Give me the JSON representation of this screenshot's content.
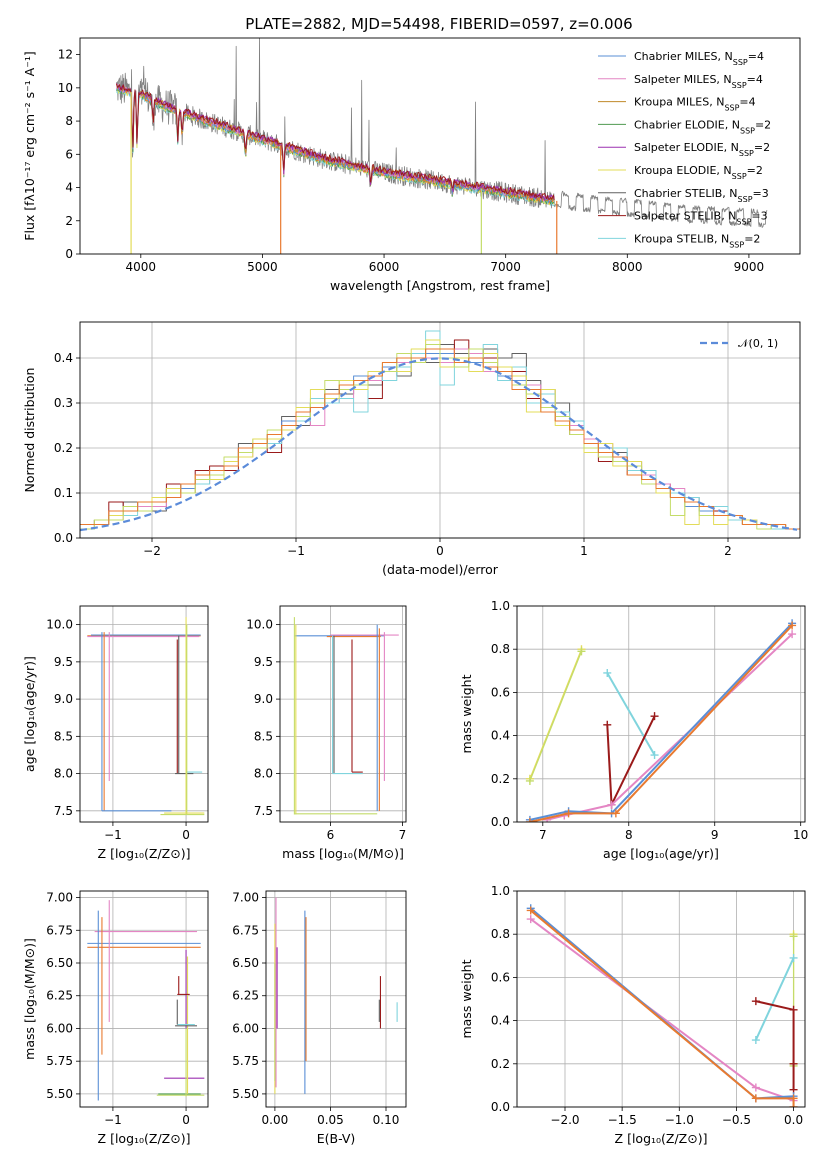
{
  "title": "PLATE=2882, MJD=54498, FIBERID=0597, z=0.006",
  "colors": {
    "c_m": "#5a8fd6",
    "s_m": "#e486c4",
    "k_m": "#c08a2a",
    "c_e": "#4f9a50",
    "s_e": "#9b30b0",
    "k_e": "#e3dc5a",
    "c_s": "#606060",
    "s_s": "#9a1a1a",
    "k_s": "#80d4dd",
    "data": "#808080",
    "orange": "#e87a30",
    "lime": "#c4dc6a"
  },
  "chart_data": [
    {
      "id": "spectrum",
      "type": "line",
      "title": "PLATE=2882, MJD=54498, FIBERID=0597, z=0.006",
      "xlabel": "wavelength [Angstrom, rest frame]",
      "ylabel": "Flux [fλ10⁻¹⁷ erg cm⁻² s⁻¹ A⁻¹]",
      "xlim": [
        3500,
        9420
      ],
      "ylim": [
        0,
        13
      ],
      "xticks": [
        4000,
        5000,
        6000,
        7000,
        8000,
        9000
      ],
      "yticks": [
        0,
        2,
        4,
        6,
        8,
        10,
        12
      ],
      "grid": false,
      "legend_position": "top-right",
      "continuum_anchors": {
        "x": [
          3800,
          3900,
          4000,
          4200,
          4500,
          5000,
          5500,
          6000,
          6500,
          7000,
          7500,
          8000,
          8500,
          9000,
          9150
        ],
        "y": [
          10.0,
          9.8,
          9.6,
          8.9,
          8.1,
          6.9,
          5.7,
          4.9,
          4.3,
          3.7,
          3.1,
          2.7,
          2.3,
          2.1,
          2.0
        ]
      },
      "data_range": [
        3800,
        9150
      ],
      "model_range": [
        3800,
        7400
      ],
      "legend": [
        {
          "label": "Chabrier MILES, N",
          "sub": "SSP",
          "suffix": "=4",
          "color_key": "c_m"
        },
        {
          "label": "Salpeter MILES, N",
          "sub": "SSP",
          "suffix": "=4",
          "color_key": "s_m"
        },
        {
          "label": "Kroupa MILES, N",
          "sub": "SSP",
          "suffix": "=4",
          "color_key": "k_m"
        },
        {
          "label": "Chabrier ELODIE, N",
          "sub": "SSP",
          "suffix": "=2",
          "color_key": "c_e"
        },
        {
          "label": "Salpeter ELODIE, N",
          "sub": "SSP",
          "suffix": "=2",
          "color_key": "s_e"
        },
        {
          "label": "Kroupa ELODIE, N",
          "sub": "SSP",
          "suffix": "=2",
          "color_key": "k_e"
        },
        {
          "label": "Chabrier STELIB, N",
          "sub": "SSP",
          "suffix": "=3",
          "color_key": "c_s"
        },
        {
          "label": "Salpeter STELIB, N",
          "sub": "SSP",
          "suffix": "=3",
          "color_key": "s_s"
        },
        {
          "label": "Kroupa STELIB, N",
          "sub": "SSP",
          "suffix": "=2",
          "color_key": "k_s"
        }
      ]
    },
    {
      "id": "residuals",
      "type": "line",
      "xlabel": "(data-model)/error",
      "ylabel": "Normed distribution",
      "xlim": [
        -2.5,
        2.5
      ],
      "ylim": [
        0,
        0.48
      ],
      "xticks": [
        -2,
        -1,
        0,
        1,
        2
      ],
      "yticks": [
        0.0,
        0.1,
        0.2,
        0.3,
        0.4
      ],
      "grid": true,
      "legend_position": "top-right",
      "legend_label": "𝒩(0, 1)",
      "bin_width": 0.1,
      "bin_start": -2.5,
      "series": [
        {
          "color_key": "c_s",
          "values": [
            0.03,
            0.04,
            0.05,
            0.08,
            0.07,
            0.06,
            0.11,
            0.1,
            0.12,
            0.14,
            0.17,
            0.21,
            0.2,
            0.22,
            0.27,
            0.25,
            0.3,
            0.33,
            0.32,
            0.35,
            0.34,
            0.38,
            0.36,
            0.4,
            0.39,
            0.43,
            0.41,
            0.39,
            0.42,
            0.4,
            0.41,
            0.35,
            0.33,
            0.3,
            0.24,
            0.22,
            0.2,
            0.19,
            0.17,
            0.15,
            0.12,
            0.1,
            0.09,
            0.07,
            0.06,
            0.05,
            0.04,
            0.03,
            0.03,
            0.02
          ]
        },
        {
          "color_key": "s_s",
          "values": [
            0.02,
            0.04,
            0.08,
            0.07,
            0.08,
            0.09,
            0.12,
            0.11,
            0.15,
            0.16,
            0.15,
            0.2,
            0.21,
            0.19,
            0.26,
            0.27,
            0.29,
            0.32,
            0.33,
            0.34,
            0.31,
            0.37,
            0.39,
            0.4,
            0.42,
            0.41,
            0.44,
            0.42,
            0.4,
            0.36,
            0.37,
            0.31,
            0.3,
            0.26,
            0.23,
            0.21,
            0.17,
            0.18,
            0.14,
            0.13,
            0.12,
            0.09,
            0.08,
            0.06,
            0.06,
            0.04,
            0.03,
            0.03,
            0.03,
            0.02
          ]
        },
        {
          "color_key": "c_m",
          "values": [
            0.03,
            0.03,
            0.05,
            0.06,
            0.07,
            0.08,
            0.1,
            0.11,
            0.13,
            0.15,
            0.17,
            0.19,
            0.21,
            0.23,
            0.26,
            0.28,
            0.3,
            0.32,
            0.34,
            0.36,
            0.37,
            0.38,
            0.4,
            0.4,
            0.41,
            0.41,
            0.4,
            0.39,
            0.38,
            0.36,
            0.35,
            0.32,
            0.3,
            0.27,
            0.25,
            0.22,
            0.2,
            0.17,
            0.15,
            0.13,
            0.11,
            0.09,
            0.07,
            0.06,
            0.05,
            0.04,
            0.03,
            0.03,
            0.02,
            0.02
          ]
        },
        {
          "color_key": "s_m",
          "values": [
            0.02,
            0.03,
            0.04,
            0.06,
            0.07,
            0.07,
            0.09,
            0.1,
            0.12,
            0.14,
            0.16,
            0.18,
            0.2,
            0.22,
            0.24,
            0.27,
            0.25,
            0.3,
            0.31,
            0.33,
            0.35,
            0.37,
            0.39,
            0.41,
            0.4,
            0.39,
            0.42,
            0.41,
            0.37,
            0.38,
            0.33,
            0.34,
            0.29,
            0.28,
            0.25,
            0.22,
            0.21,
            0.18,
            0.16,
            0.14,
            0.12,
            0.11,
            0.08,
            0.07,
            0.05,
            0.05,
            0.04,
            0.03,
            0.03,
            0.02
          ]
        },
        {
          "color_key": "k_s",
          "values": [
            0.02,
            0.03,
            0.05,
            0.05,
            0.08,
            0.08,
            0.1,
            0.12,
            0.12,
            0.15,
            0.16,
            0.19,
            0.22,
            0.21,
            0.25,
            0.26,
            0.31,
            0.3,
            0.31,
            0.28,
            0.36,
            0.35,
            0.38,
            0.41,
            0.46,
            0.34,
            0.39,
            0.4,
            0.43,
            0.35,
            0.38,
            0.3,
            0.32,
            0.28,
            0.26,
            0.2,
            0.19,
            0.2,
            0.15,
            0.15,
            0.11,
            0.1,
            0.09,
            0.07,
            0.07,
            0.04,
            0.04,
            0.03,
            0.02,
            0.02
          ]
        },
        {
          "color_key": "k_e",
          "values": [
            0.03,
            0.03,
            0.05,
            0.07,
            0.06,
            0.09,
            0.11,
            0.1,
            0.14,
            0.13,
            0.17,
            0.18,
            0.22,
            0.22,
            0.24,
            0.29,
            0.33,
            0.31,
            0.35,
            0.33,
            0.37,
            0.39,
            0.37,
            0.42,
            0.44,
            0.38,
            0.4,
            0.37,
            0.41,
            0.38,
            0.36,
            0.28,
            0.33,
            0.25,
            0.24,
            0.19,
            0.21,
            0.16,
            0.17,
            0.13,
            0.1,
            0.09,
            0.03,
            0.07,
            0.03,
            0.05,
            0.04,
            0.03,
            0.03,
            0.02
          ]
        },
        {
          "color_key": "lime",
          "values": [
            0.02,
            0.04,
            0.04,
            0.07,
            0.06,
            0.08,
            0.1,
            0.1,
            0.13,
            0.14,
            0.18,
            0.19,
            0.2,
            0.24,
            0.25,
            0.27,
            0.3,
            0.35,
            0.33,
            0.34,
            0.36,
            0.37,
            0.41,
            0.39,
            0.43,
            0.4,
            0.38,
            0.42,
            0.39,
            0.37,
            0.34,
            0.32,
            0.29,
            0.27,
            0.23,
            0.2,
            0.18,
            0.17,
            0.16,
            0.12,
            0.11,
            0.05,
            0.08,
            0.05,
            0.05,
            0.05,
            0.03,
            0.02,
            0.03,
            0.02
          ]
        },
        {
          "color_key": "orange",
          "values": [
            0.03,
            0.03,
            0.06,
            0.06,
            0.08,
            0.08,
            0.09,
            0.12,
            0.14,
            0.15,
            0.16,
            0.2,
            0.21,
            0.23,
            0.25,
            0.28,
            0.29,
            0.32,
            0.34,
            0.35,
            0.36,
            0.39,
            0.4,
            0.4,
            0.42,
            0.42,
            0.39,
            0.4,
            0.38,
            0.37,
            0.33,
            0.33,
            0.28,
            0.26,
            0.24,
            0.21,
            0.19,
            0.18,
            0.14,
            0.13,
            0.11,
            0.09,
            0.08,
            0.07,
            0.05,
            0.05,
            0.03,
            0.03,
            0.03,
            0.02
          ]
        }
      ]
    },
    {
      "id": "age_vs_z",
      "type": "line",
      "xlabel": "Z [log₁₀(Z/Z⊙)]",
      "ylabel": "age  [log₁₀(age/yr)]",
      "xlim": [
        -1.45,
        0.3
      ],
      "ylim": [
        7.35,
        10.25
      ],
      "xticks": [
        -1,
        0
      ],
      "yticks": [
        7.5,
        8.0,
        8.5,
        9.0,
        9.5,
        10.0
      ],
      "grid": true
    },
    {
      "id": "age_vs_mass",
      "type": "line",
      "xlabel": "mass [log₁₀(M/M⊙)]",
      "xlim": [
        5.3,
        7.05
      ],
      "ylim": [
        7.35,
        10.25
      ],
      "xticks": [
        6,
        7
      ],
      "yticks": [
        7.5,
        8.0,
        8.5,
        9.0,
        9.5,
        10.0
      ],
      "grid": true
    },
    {
      "id": "weight_vs_age",
      "type": "line",
      "xlabel": "age  [log₁₀(age/yr)]",
      "ylabel": "mass weight",
      "xlim": [
        6.7,
        10.05
      ],
      "ylim": [
        0,
        1.0
      ],
      "xticks": [
        7,
        8,
        9,
        10
      ],
      "yticks": [
        0.0,
        0.2,
        0.4,
        0.6,
        0.8,
        1.0
      ],
      "grid": true,
      "series": [
        {
          "color_key": "k_e",
          "x": [
            6.85,
            7.45
          ],
          "y": [
            0.2,
            0.8
          ]
        },
        {
          "color_key": "lime",
          "x": [
            6.85,
            7.45
          ],
          "y": [
            0.19,
            0.79
          ]
        },
        {
          "color_key": "k_s",
          "x": [
            7.75,
            8.3
          ],
          "y": [
            0.69,
            0.31
          ]
        },
        {
          "color_key": "s_s",
          "x": [
            7.75,
            7.8,
            8.3
          ],
          "y": [
            0.45,
            0.08,
            0.49
          ]
        },
        {
          "color_key": "s_m",
          "x": [
            7.05,
            7.25,
            7.8,
            9.9
          ],
          "y": [
            0.01,
            0.03,
            0.08,
            0.87
          ]
        },
        {
          "color_key": "c_m",
          "x": [
            6.85,
            7.3,
            7.8,
            9.9
          ],
          "y": [
            0.01,
            0.05,
            0.04,
            0.92
          ]
        },
        {
          "color_key": "orange",
          "x": [
            6.85,
            7.3,
            7.85,
            9.9
          ],
          "y": [
            0.0,
            0.04,
            0.04,
            0.91
          ]
        }
      ]
    },
    {
      "id": "mass_vs_z",
      "type": "line",
      "xlabel": "Z [log₁₀(Z/Z⊙)]",
      "ylabel": "mass [log₁₀(M/M⊙)]",
      "xlim": [
        -1.45,
        0.3
      ],
      "ylim": [
        5.4,
        7.05
      ],
      "xticks": [
        -1,
        0
      ],
      "yticks": [
        5.5,
        5.75,
        6.0,
        6.25,
        6.5,
        6.75,
        7.0
      ],
      "grid": true
    },
    {
      "id": "mass_vs_ebv",
      "type": "line",
      "xlabel": "E(B-V)",
      "xlim": [
        -0.008,
        0.118
      ],
      "ylim": [
        5.4,
        7.05
      ],
      "xticks": [
        0.0,
        0.05,
        0.1
      ],
      "yticks": [
        5.5,
        5.75,
        6.0,
        6.25,
        6.5,
        6.75,
        7.0
      ],
      "grid": true
    },
    {
      "id": "weight_vs_z",
      "type": "line",
      "xlabel": "Z [log₁₀(Z/Z⊙)]",
      "ylabel": "mass weight",
      "xlim": [
        -2.42,
        0.1
      ],
      "ylim": [
        0,
        1.0
      ],
      "xticks": [
        -2.0,
        -1.5,
        -1.0,
        -0.5,
        0.0
      ],
      "yticks": [
        0.0,
        0.2,
        0.4,
        0.6,
        0.8,
        1.0
      ],
      "grid": true,
      "series": [
        {
          "color_key": "k_e",
          "x": [
            0.0,
            0.0
          ],
          "y": [
            0.2,
            0.8
          ]
        },
        {
          "color_key": "lime",
          "x": [
            0.0,
            0.0
          ],
          "y": [
            0.19,
            0.79
          ]
        },
        {
          "color_key": "k_s",
          "x": [
            -0.33,
            0.0
          ],
          "y": [
            0.31,
            0.69
          ]
        },
        {
          "color_key": "s_s",
          "x": [
            -0.33,
            0.0,
            0.0,
            0.0
          ],
          "y": [
            0.49,
            0.45,
            0.2,
            0.08
          ]
        },
        {
          "color_key": "s_m",
          "x": [
            -2.3,
            -0.33,
            0.0
          ],
          "y": [
            0.87,
            0.09,
            0.03
          ]
        },
        {
          "color_key": "c_m",
          "x": [
            -2.3,
            -0.33,
            0.0
          ],
          "y": [
            0.92,
            0.04,
            0.05
          ]
        },
        {
          "color_key": "orange",
          "x": [
            -2.3,
            -0.33,
            0.0,
            0.0
          ],
          "y": [
            0.91,
            0.04,
            0.04,
            0.0
          ]
        }
      ]
    }
  ]
}
